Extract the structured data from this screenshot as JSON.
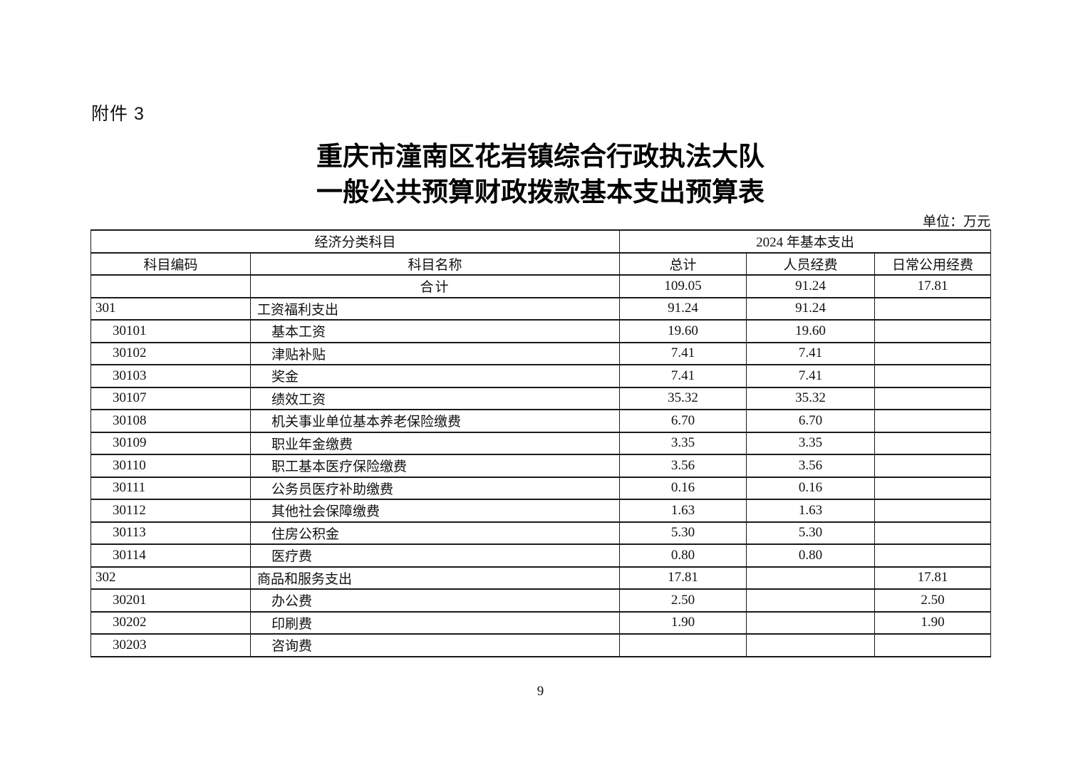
{
  "page": {
    "attachment_label": "附件 3",
    "title_line1": "重庆市潼南区花岩镇综合行政执法大队",
    "title_line2": "一般公共预算财政拨款基本支出预算表",
    "unit_label": "单位：万元",
    "page_number": "9",
    "text_color": "#111111",
    "border_color": "#1a1a1a"
  },
  "table": {
    "header": {
      "group_left": "经济分类科目",
      "group_right": "2024 年基本支出",
      "col_code": "科目编码",
      "col_name": "科目名称",
      "col_total": "总计",
      "col_personnel": "人员经费",
      "col_daily": "日常公用经费"
    },
    "rows": [
      {
        "code": "",
        "name": "合计",
        "total": "109.05",
        "personnel": "91.24",
        "daily": "17.81",
        "level": 0
      },
      {
        "code": "301",
        "name": "工资福利支出",
        "total": "91.24",
        "personnel": "91.24",
        "daily": "",
        "level": 1
      },
      {
        "code": "30101",
        "name": "基本工资",
        "total": "19.60",
        "personnel": "19.60",
        "daily": "",
        "level": 2
      },
      {
        "code": "30102",
        "name": "津贴补贴",
        "total": "7.41",
        "personnel": "7.41",
        "daily": "",
        "level": 2
      },
      {
        "code": "30103",
        "name": "奖金",
        "total": "7.41",
        "personnel": "7.41",
        "daily": "",
        "level": 2
      },
      {
        "code": "30107",
        "name": "绩效工资",
        "total": "35.32",
        "personnel": "35.32",
        "daily": "",
        "level": 2
      },
      {
        "code": "30108",
        "name": "机关事业单位基本养老保险缴费",
        "total": "6.70",
        "personnel": "6.70",
        "daily": "",
        "level": 2
      },
      {
        "code": "30109",
        "name": "职业年金缴费",
        "total": "3.35",
        "personnel": "3.35",
        "daily": "",
        "level": 2
      },
      {
        "code": "30110",
        "name": "职工基本医疗保险缴费",
        "total": "3.56",
        "personnel": "3.56",
        "daily": "",
        "level": 2
      },
      {
        "code": "30111",
        "name": "公务员医疗补助缴费",
        "total": "0.16",
        "personnel": "0.16",
        "daily": "",
        "level": 2
      },
      {
        "code": "30112",
        "name": "其他社会保障缴费",
        "total": "1.63",
        "personnel": "1.63",
        "daily": "",
        "level": 2
      },
      {
        "code": "30113",
        "name": "住房公积金",
        "total": "5.30",
        "personnel": "5.30",
        "daily": "",
        "level": 2
      },
      {
        "code": "30114",
        "name": "医疗费",
        "total": "0.80",
        "personnel": "0.80",
        "daily": "",
        "level": 2
      },
      {
        "code": "302",
        "name": "商品和服务支出",
        "total": "17.81",
        "personnel": "",
        "daily": "17.81",
        "level": 1
      },
      {
        "code": "30201",
        "name": "办公费",
        "total": "2.50",
        "personnel": "",
        "daily": "2.50",
        "level": 2
      },
      {
        "code": "30202",
        "name": "印刷费",
        "total": "1.90",
        "personnel": "",
        "daily": "1.90",
        "level": 2
      },
      {
        "code": "30203",
        "name": "咨询费",
        "total": "",
        "personnel": "",
        "daily": "",
        "level": 2
      }
    ]
  }
}
